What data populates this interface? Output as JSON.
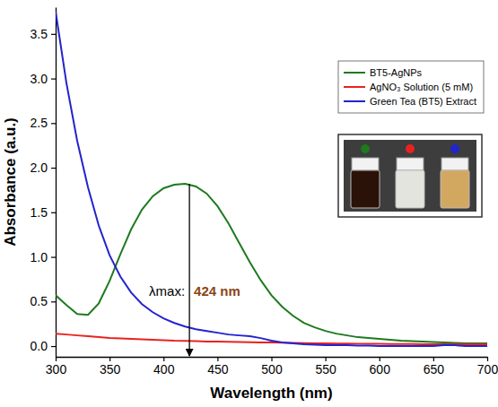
{
  "chart_data": {
    "type": "line",
    "x_label": "Wavelength (nm)",
    "y_label": "Absorbance (a.u.)",
    "x": [
      300,
      310,
      320,
      330,
      340,
      350,
      360,
      370,
      380,
      390,
      400,
      410,
      420,
      430,
      440,
      450,
      460,
      470,
      480,
      490,
      500,
      510,
      520,
      530,
      540,
      550,
      560,
      570,
      580,
      590,
      600,
      610,
      620,
      630,
      640,
      650,
      660,
      670,
      680,
      690,
      700
    ],
    "series": [
      {
        "name": "BT5-AgNPs",
        "color": "#1e7a1e",
        "values": [
          0.57,
          0.46,
          0.36,
          0.35,
          0.48,
          0.73,
          1.03,
          1.31,
          1.53,
          1.68,
          1.77,
          1.81,
          1.82,
          1.79,
          1.71,
          1.57,
          1.38,
          1.16,
          0.94,
          0.74,
          0.57,
          0.44,
          0.34,
          0.26,
          0.21,
          0.17,
          0.14,
          0.12,
          0.1,
          0.09,
          0.08,
          0.07,
          0.06,
          0.055,
          0.05,
          0.045,
          0.04,
          0.035,
          0.03,
          0.03,
          0.03
        ]
      },
      {
        "name": "AgNO₃ Solution (5 mM)",
        "color": "#e8231f",
        "values": [
          0.14,
          0.13,
          0.12,
          0.11,
          0.1,
          0.09,
          0.085,
          0.08,
          0.075,
          0.07,
          0.065,
          0.06,
          0.058,
          0.055,
          0.052,
          0.05,
          0.048,
          0.046,
          0.044,
          0.042,
          0.04,
          0.038,
          0.036,
          0.034,
          0.032,
          0.03,
          0.029,
          0.028,
          0.027,
          0.026,
          0.025,
          0.024,
          0.023,
          0.022,
          0.021,
          0.02,
          0.02,
          0.02,
          0.02,
          0.02,
          0.02
        ]
      },
      {
        "name": "Green Tea (BT5) Extract",
        "color": "#2323d0",
        "values": [
          3.75,
          2.95,
          2.3,
          1.78,
          1.35,
          1.02,
          0.78,
          0.6,
          0.47,
          0.38,
          0.31,
          0.26,
          0.22,
          0.19,
          0.17,
          0.15,
          0.13,
          0.12,
          0.11,
          0.09,
          0.06,
          0.04,
          0.03,
          0.02,
          0.015,
          0.01,
          0.01,
          0.01,
          0.005,
          0.005,
          0,
          0,
          0,
          0,
          0,
          0,
          0.01,
          0.01,
          0,
          0,
          0
        ]
      }
    ],
    "xlim": [
      300,
      700
    ],
    "xticks": [
      300,
      350,
      400,
      450,
      500,
      550,
      600,
      650,
      700
    ],
    "ylim": [
      -0.12,
      3.8
    ],
    "yticks": [
      {
        "value": 0,
        "label": "0.0"
      },
      0.5,
      {
        "value": 1,
        "label": "1.0"
      },
      1.5,
      {
        "value": 2,
        "label": "2.0"
      },
      2.5,
      {
        "value": 3,
        "label": "3.0"
      },
      3.5
    ],
    "legend": "upper right",
    "annotation": {
      "text": "λmax:",
      "value_label": "424 nm",
      "x": 424,
      "y": 1.82
    }
  }
}
